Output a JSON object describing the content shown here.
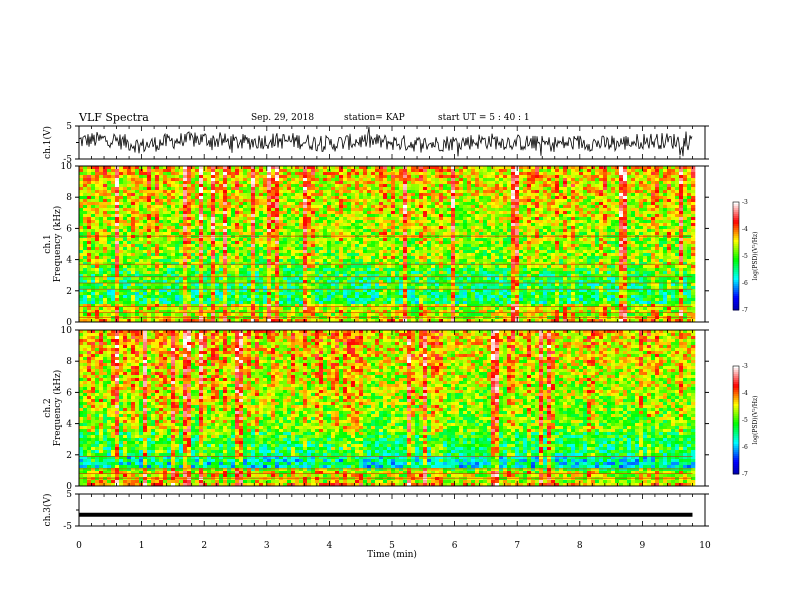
{
  "header": {
    "title": "VLF Spectra",
    "date": "Sep. 29, 2018",
    "station": "station= KAP",
    "start": "start  UT =   5 : 40 : 1"
  },
  "chart_data": [
    {
      "type": "line",
      "title": "",
      "ylabel": "ch.1(V)",
      "ylim": [
        -5,
        5
      ],
      "ytick_labels": [
        "5",
        "-5"
      ],
      "x": [
        0,
        0.5,
        1,
        1.5,
        2,
        2.5,
        3,
        3.5,
        4,
        4.5,
        5,
        5.5,
        6,
        6.5,
        7,
        7.5,
        8,
        8.5,
        9,
        9.5,
        9.8
      ],
      "y": [
        0.5,
        1.0,
        -1.0,
        0.5,
        1.0,
        0.0,
        0.5,
        0.5,
        -0.5,
        0.5,
        0.0,
        -0.5,
        0.0,
        0.5,
        0.0,
        -0.5,
        0.0,
        -0.5,
        0.5,
        0.5,
        0.0
      ],
      "description_note": "noisy waveform oscillating mostly within about -3 to +4 V"
    },
    {
      "type": "heatmap",
      "title": "",
      "channel_label": "ch.1",
      "ylabel": "Frequency (kHz)",
      "ylim": [
        0,
        10
      ],
      "ytick_labels": [
        "0",
        "2",
        "4",
        "6",
        "8",
        "10"
      ],
      "xlim": [
        0,
        10
      ],
      "data_end_min": 9.8,
      "line_frequencies_khz": [
        0.3,
        0.6,
        1.0,
        2.1,
        2.5,
        2.9,
        3.7,
        5.5
      ],
      "colorbar": {
        "label": "log(PSD)(V²/Hz)",
        "range": [
          -7,
          -3
        ],
        "tick_labels": [
          "-3",
          "-4",
          "-5",
          "-6",
          "-7"
        ]
      }
    },
    {
      "type": "heatmap",
      "title": "",
      "channel_label": "ch.2",
      "ylabel": "Frequency (kHz)",
      "ylim": [
        0,
        10
      ],
      "ytick_labels": [
        "0",
        "2",
        "4",
        "6",
        "8",
        "10"
      ],
      "xlim": [
        0,
        10
      ],
      "data_end_min": 9.8,
      "line_frequencies_khz": [
        0.5,
        0.8,
        1.1,
        1.9
      ],
      "colorbar": {
        "label": "log(PSD)(V²/Hz)",
        "range": [
          -7,
          -3
        ],
        "tick_labels": [
          "-3",
          "-4",
          "-5",
          "-6",
          "-7"
        ]
      }
    },
    {
      "type": "line",
      "title": "",
      "ylabel": "ch.3(V)",
      "ylim": [
        -5,
        5
      ],
      "ytick_labels": [
        "5",
        "-5"
      ],
      "x": [
        0,
        9.8
      ],
      "y": [
        -1.5,
        -1.5
      ],
      "xlabel": "Time (min)",
      "xlim": [
        0,
        10
      ],
      "xtick_labels": [
        "0",
        "1",
        "2",
        "3",
        "4",
        "5",
        "6",
        "7",
        "8",
        "9",
        "10"
      ]
    }
  ],
  "colors": {
    "colormap": [
      "#000080",
      "#0000ff",
      "#00ffff",
      "#00ff00",
      "#ffff00",
      "#ff0000",
      "#ffffff"
    ],
    "trace": "#000000"
  }
}
